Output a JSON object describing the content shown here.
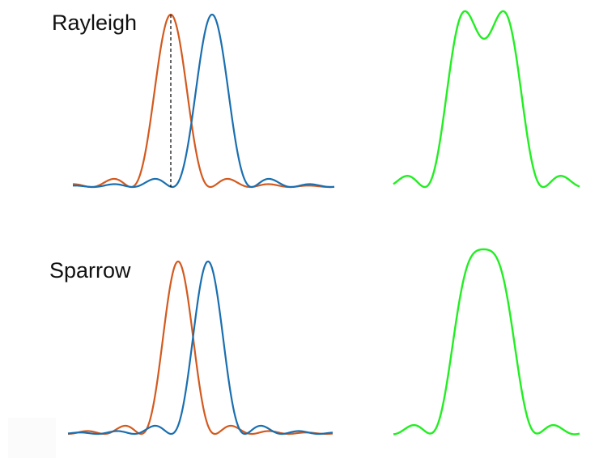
{
  "labels": {
    "rayleigh": "Rayleigh",
    "sparrow": "Sparrow"
  },
  "colors": {
    "orange": "#d35a1f",
    "blue": "#1a6fb0",
    "green": "#22ee22",
    "guide": "#000000"
  },
  "diagram": {
    "criteria": [
      "Rayleigh",
      "Sparrow"
    ],
    "curves_per_criterion": {
      "left": [
        "orange-peak",
        "blue-peak"
      ],
      "right": [
        "green-sum"
      ]
    }
  }
}
